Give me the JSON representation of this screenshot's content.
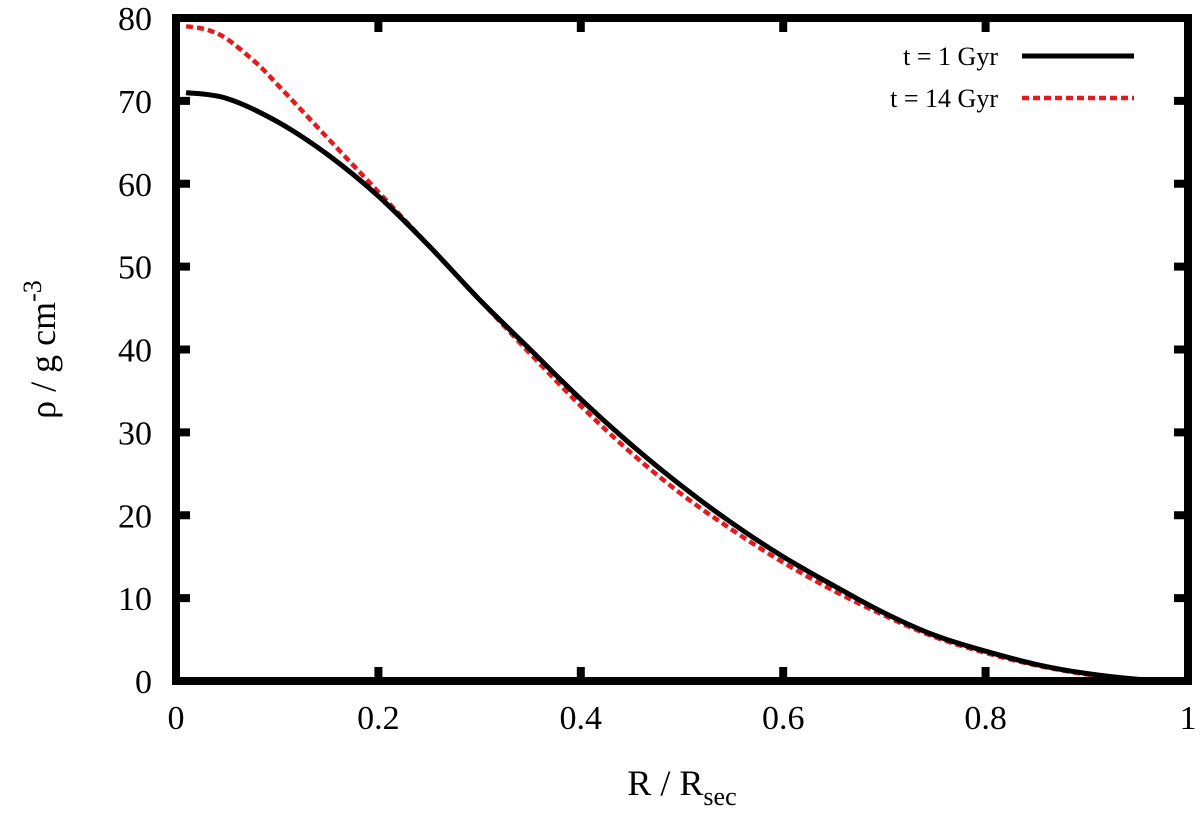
{
  "chart_data": {
    "type": "line",
    "xlabel": {
      "main": "R / R",
      "sub": "sec"
    },
    "ylabel": {
      "main": "ρ / g cm",
      "sup": "-3"
    },
    "xlim": [
      0,
      1
    ],
    "ylim": [
      0,
      80
    ],
    "x_ticks": [
      "0",
      "0.2",
      "0.4",
      "0.6",
      "0.8",
      "1"
    ],
    "y_ticks": [
      "0",
      "10",
      "20",
      "30",
      "40",
      "50",
      "60",
      "70",
      "80"
    ],
    "grid": false,
    "legend_position": "top-right",
    "series": [
      {
        "name": "t = 1 Gyr",
        "color": "#000000",
        "dash": "solid",
        "x": [
          0.01,
          0.05,
          0.1,
          0.15,
          0.2,
          0.25,
          0.3,
          0.35,
          0.4,
          0.45,
          0.5,
          0.55,
          0.6,
          0.65,
          0.7,
          0.75,
          0.8,
          0.85,
          0.9,
          0.95,
          0.98
        ],
        "y": [
          71,
          70.3,
          67.5,
          63.5,
          58.5,
          52.5,
          46,
          40,
          34,
          28.5,
          23.5,
          19,
          15,
          11.5,
          8.2,
          5.5,
          3.6,
          2,
          0.9,
          0.2,
          0
        ]
      },
      {
        "name": "t = 14 Gyr",
        "color": "#e41a1c",
        "dash": "dashed",
        "x": [
          0.01,
          0.03,
          0.05,
          0.08,
          0.1,
          0.15,
          0.2,
          0.25,
          0.3,
          0.35,
          0.4,
          0.45,
          0.5,
          0.55,
          0.6,
          0.65,
          0.7,
          0.75,
          0.8,
          0.85,
          0.9,
          0.95,
          0.98
        ],
        "y": [
          79,
          78.6,
          77.5,
          74.5,
          72,
          65.5,
          59,
          52.5,
          46,
          39.5,
          33.2,
          27.5,
          22.5,
          18.2,
          14.3,
          10.9,
          7.9,
          5.3,
          3.4,
          1.9,
          0.8,
          0.2,
          0
        ]
      }
    ]
  }
}
